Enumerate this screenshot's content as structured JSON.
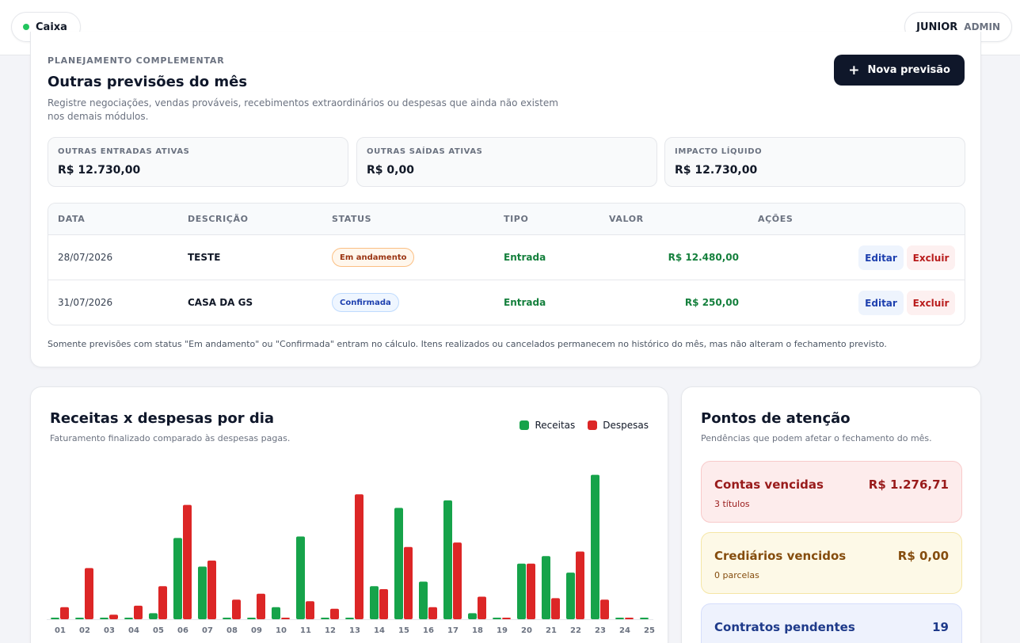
{
  "topbar": {
    "caixa_label": "Caixa",
    "user_name": "JUNIOR",
    "user_role": "ADMIN"
  },
  "planning": {
    "eyebrow": "PLANEJAMENTO COMPLEMENTAR",
    "title": "Outras previsões do mês",
    "description": "Registre negociações, vendas prováveis, recebimentos extraordinários ou despesas que ainda não existem nos demais módulos.",
    "new_button": "Nova previsão",
    "stats": [
      {
        "label": "OUTRAS ENTRADAS ATIVAS",
        "value": "R$ 12.730,00"
      },
      {
        "label": "OUTRAS SAÍDAS ATIVAS",
        "value": "R$ 0,00"
      },
      {
        "label": "IMPACTO LÍQUIDO",
        "value": "R$ 12.730,00"
      }
    ],
    "table": {
      "headers": [
        "DATA",
        "DESCRIÇÃO",
        "STATUS",
        "TIPO",
        "VALOR",
        "AÇÕES"
      ],
      "rows": [
        {
          "data": "28/07/2026",
          "descricao": "TESTE",
          "status": "Em andamento",
          "tipo": "Entrada",
          "valor": "R$ 12.480,00",
          "edit": "Editar",
          "delete": "Excluir"
        },
        {
          "data": "31/07/2026",
          "descricao": "CASA DA GS",
          "status": "Confirmada",
          "tipo": "Entrada",
          "valor": "R$ 250,00",
          "edit": "Editar",
          "delete": "Excluir"
        }
      ]
    },
    "footnote": "Somente previsões com status \"Em andamento\" ou \"Confirmada\" entram no cálculo. Itens realizados ou cancelados permanecem no histórico do mês, mas não alteram o fechamento previsto."
  },
  "chart_card": {
    "title": "Receitas x despesas por dia",
    "subtitle": "Faturamento finalizado comparado às despesas pagas."
  },
  "chart_data": {
    "type": "bar",
    "categories": [
      "01",
      "02",
      "03",
      "04",
      "05",
      "06",
      "07",
      "08",
      "09",
      "10",
      "11",
      "12",
      "13",
      "14",
      "15",
      "16",
      "17",
      "18",
      "19",
      "20",
      "21",
      "22",
      "23",
      "24",
      "25"
    ],
    "series": [
      {
        "name": "Receitas",
        "color": "#16a34a",
        "values": [
          1,
          1,
          1,
          1,
          4,
          54,
          35,
          1,
          1,
          8,
          55,
          1,
          1,
          22,
          74,
          25,
          79,
          4,
          1,
          37,
          42,
          31,
          96,
          1,
          1
        ]
      },
      {
        "name": "Despesas",
        "color": "#dc2626",
        "values": [
          8,
          34,
          3,
          9,
          22,
          76,
          39,
          13,
          17,
          1,
          12,
          7,
          83,
          20,
          48,
          8,
          51,
          15,
          1,
          37,
          14,
          45,
          13,
          1,
          0
        ]
      }
    ],
    "ylim": [
      0,
      100
    ],
    "legend_position": "top-right",
    "grid": false
  },
  "attention": {
    "title": "Pontos de atenção",
    "subtitle": "Pendências que podem afetar o fechamento do mês.",
    "items": [
      {
        "title": "Contas vencidas",
        "value": "R$ 1.276,71",
        "sub": "3 títulos"
      },
      {
        "title": "Crediários vencidos",
        "value": "R$ 0,00",
        "sub": "0 parcelas"
      },
      {
        "title": "Contratos pendentes",
        "value": "19",
        "sub": ""
      }
    ]
  }
}
